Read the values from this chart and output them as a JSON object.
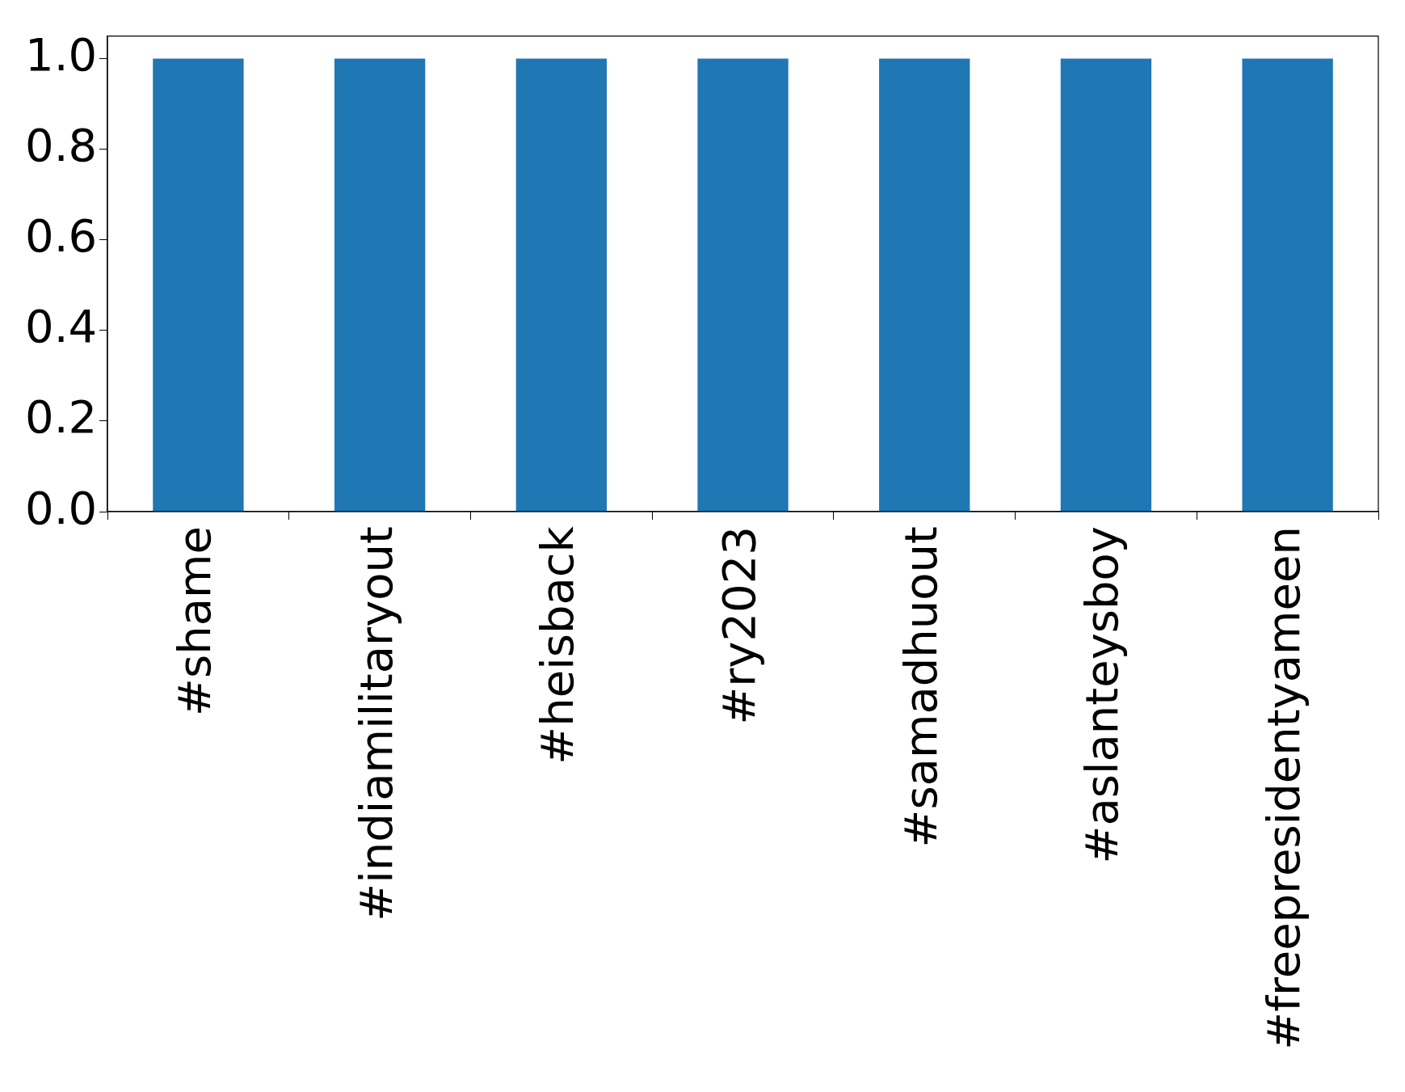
{
  "chart_data": {
    "type": "bar",
    "categories": [
      "#shame",
      "#indiamilitaryout",
      "#heisback",
      "#ry2023",
      "#samadhuout",
      "#aslanteysboy",
      "#freepresidentyameen"
    ],
    "values": [
      1,
      1,
      1,
      1,
      1,
      1,
      1
    ],
    "color": "#1f77b4",
    "ylim": [
      0,
      1.05
    ],
    "yticks": [
      {
        "value": 0,
        "label": "0.0"
      },
      0.2,
      0.4,
      0.6,
      0.8,
      {
        "value": 1,
        "label": "1.0"
      }
    ],
    "grid": false,
    "legend": false
  }
}
